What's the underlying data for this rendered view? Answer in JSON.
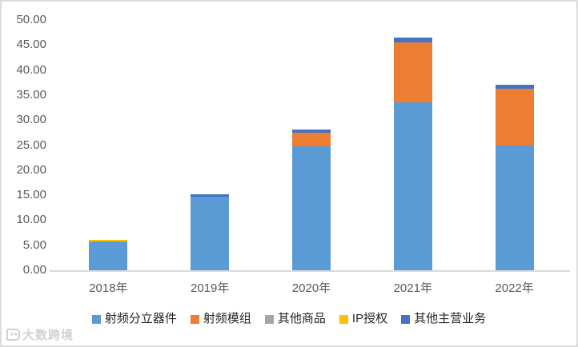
{
  "chart_data": {
    "type": "bar",
    "stacked": true,
    "title": "",
    "xlabel": "",
    "ylabel": "",
    "categories": [
      "2018年",
      "2019年",
      "2020年",
      "2021年",
      "2022年"
    ],
    "series": [
      {
        "name": "射频分立器件",
        "color": "#5B9BD5",
        "values": [
          5.7,
          14.7,
          24.7,
          33.5,
          24.9
        ]
      },
      {
        "name": "射频模组",
        "color": "#ED7D31",
        "values": [
          0,
          0,
          2.8,
          12.0,
          11.4
        ]
      },
      {
        "name": "其他商品",
        "color": "#A5A5A5",
        "values": [
          0,
          0,
          0,
          0,
          0
        ]
      },
      {
        "name": "IP授权",
        "color": "#FFC000",
        "values": [
          0.3,
          0,
          0,
          0,
          0
        ]
      },
      {
        "name": "其他主营业务",
        "color": "#4472C4",
        "values": [
          0,
          0.5,
          0.6,
          1.0,
          0.8
        ]
      }
    ],
    "ylim": [
      0,
      50
    ],
    "ytick_step": 5,
    "ytick_labels": [
      "0.00",
      "5.00",
      "10.00",
      "15.00",
      "20.00",
      "25.00",
      "30.00",
      "35.00",
      "40.00",
      "45.00",
      "50.00"
    ],
    "grid": false,
    "legend_position": "bottom",
    "axis_text_color": "#595959",
    "axis_line_color": "#D9D9D9"
  },
  "watermark": {
    "text": "大数跨境"
  }
}
